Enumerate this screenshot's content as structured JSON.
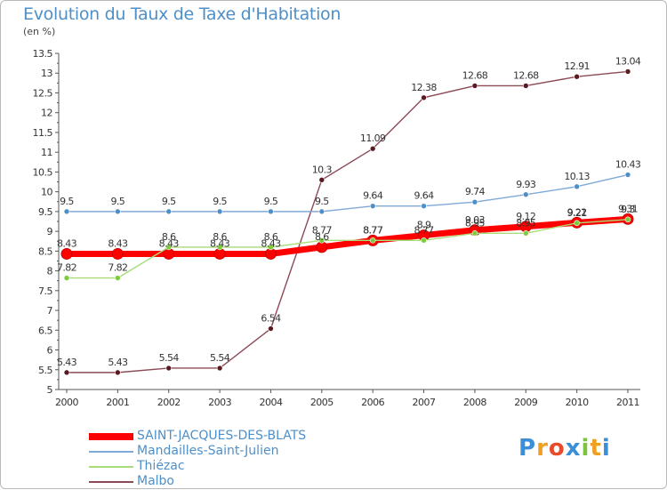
{
  "chart_data": {
    "type": "line",
    "title": "Evolution du Taux de Taxe d'Habitation",
    "subtitle": "(en %)",
    "x": [
      2000,
      2001,
      2002,
      2003,
      2004,
      2005,
      2006,
      2007,
      2008,
      2009,
      2010,
      2011
    ],
    "ylim": [
      5,
      13.5
    ],
    "yticks": [
      5,
      5.5,
      6,
      6.5,
      7,
      7.5,
      8,
      8.5,
      9,
      9.5,
      10,
      10.5,
      11,
      11.5,
      12,
      12.5,
      13,
      13.5
    ],
    "grid": false,
    "legend_position": "bottom-left",
    "series": [
      {
        "name": "SAINT-JACQUES-DES-BLATS",
        "color": "#ff0000",
        "marker_color": "#ff0000",
        "values": [
          8.43,
          8.43,
          8.43,
          8.43,
          8.43,
          8.6,
          8.77,
          8.9,
          9.03,
          9.12,
          9.22,
          9.31
        ],
        "labels": [
          "8.43",
          "8.43",
          "8.43",
          "8.43",
          "8.43",
          "8.6",
          "8.77",
          "8.9",
          "9.03",
          "9.12",
          "9.22",
          "9.31"
        ]
      },
      {
        "name": "Mandailles-Saint-Julien",
        "color": "#7fa9d6",
        "marker_color": "#4f8fc7",
        "values": [
          9.5,
          9.5,
          9.5,
          9.5,
          9.5,
          9.5,
          9.64,
          9.64,
          9.74,
          9.93,
          10.13,
          10.43
        ],
        "labels": [
          "9.5",
          "9.5",
          "9.5",
          "9.5",
          "9.5",
          "9.5",
          "9.64",
          "9.64",
          "9.74",
          "9.93",
          "10.13",
          "10.43"
        ]
      },
      {
        "name": "Thiézac",
        "color": "#a8dc78",
        "marker_color": "#7ccc3c",
        "values": [
          7.82,
          7.82,
          8.6,
          8.6,
          8.6,
          8.77,
          8.77,
          8.77,
          8.95,
          8.95,
          9.21,
          9.3
        ],
        "labels": [
          "7.82",
          "7.82",
          "8.6",
          "8.6",
          "8.6",
          "8.77",
          "8.77",
          "8.77",
          "8.95",
          "8.95",
          "9.21",
          "9.3"
        ]
      },
      {
        "name": "Malbo",
        "color": "#8c4a55",
        "marker_color": "#5a1a22",
        "values": [
          5.43,
          5.43,
          5.54,
          5.54,
          6.54,
          10.3,
          11.09,
          12.38,
          12.68,
          12.68,
          12.91,
          13.04
        ],
        "labels": [
          "5.43",
          "5.43",
          "5.54",
          "5.54",
          "6.54",
          "10.3",
          "11.09",
          "12.38",
          "12.68",
          "12.68",
          "12.91",
          "13.04"
        ]
      }
    ]
  },
  "logo": {
    "text": "Proxiti",
    "letters": [
      "P",
      "r",
      "o",
      "x",
      "i",
      "t",
      "i"
    ],
    "colors": [
      "#3a8fd8",
      "#f0a020",
      "#e84a2a",
      "#3a8fd8",
      "#7cc43c",
      "#f0a020",
      "#3a8fd8"
    ]
  }
}
